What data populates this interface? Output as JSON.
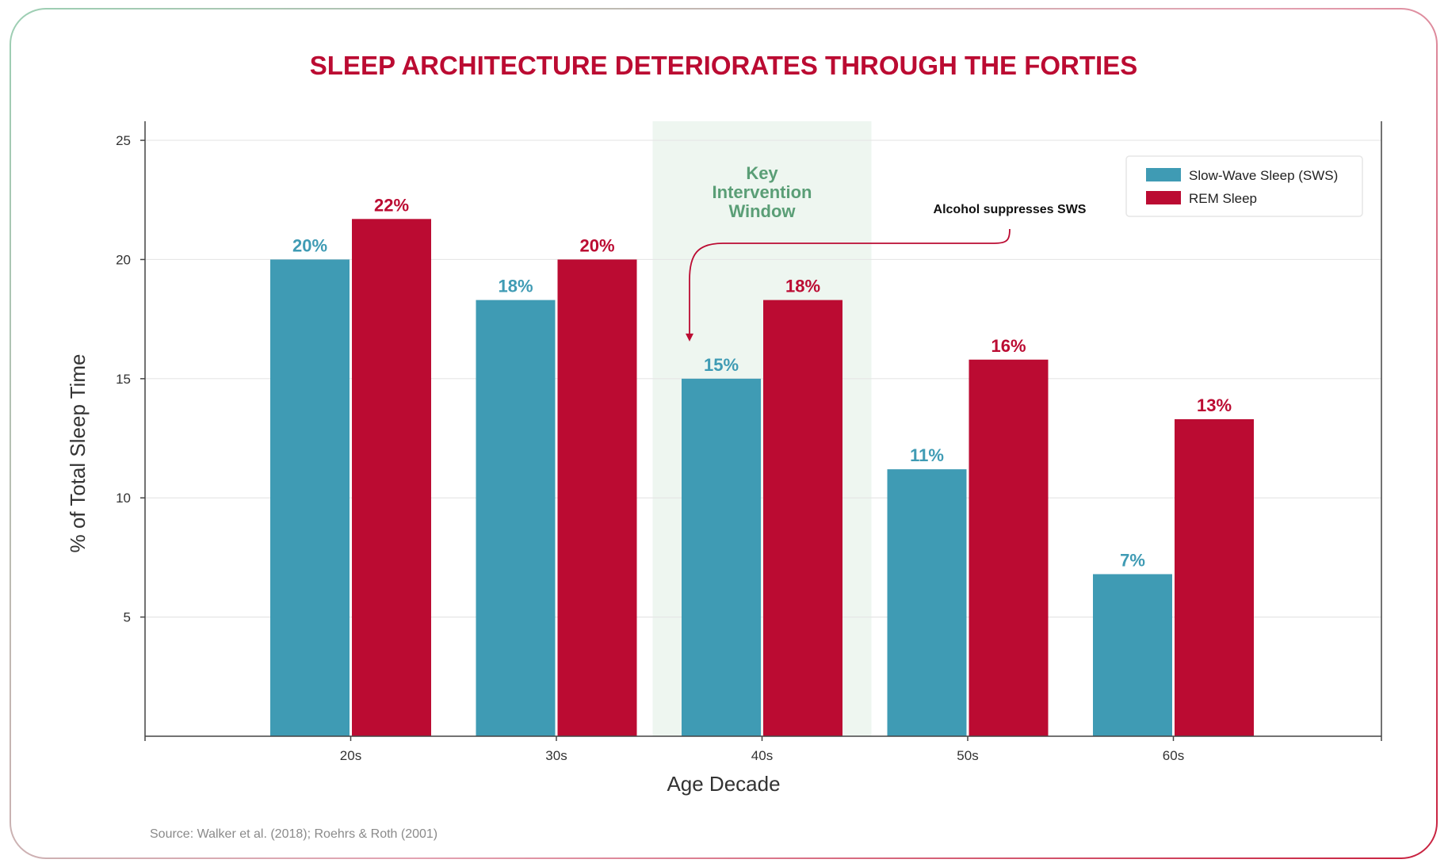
{
  "chart_data": {
    "type": "bar",
    "title": "SLEEP ARCHITECTURE DETERIORATES THROUGH THE FORTIES",
    "xlabel": "Age Decade",
    "ylabel": "% of Total Sleep Time",
    "categories": [
      "20s",
      "30s",
      "40s",
      "50s",
      "60s"
    ],
    "ylim": [
      0,
      25.8
    ],
    "yticks": [
      5,
      10,
      15,
      20,
      25
    ],
    "grid": true,
    "legend_position": "top-right",
    "series": [
      {
        "name": "Slow-Wave Sleep (SWS)",
        "color": "#3f9bb4",
        "values": [
          20,
          18.3,
          15,
          11.2,
          6.8
        ],
        "labels": [
          "20%",
          "18%",
          "15%",
          "11%",
          "7%"
        ]
      },
      {
        "name": "REM Sleep",
        "color": "#bb0b32",
        "values": [
          21.7,
          20,
          18.3,
          15.8,
          13.3
        ],
        "labels": [
          "22%",
          "20%",
          "18%",
          "16%",
          "13%"
        ]
      }
    ],
    "highlight": {
      "category": "40s",
      "label_lines": [
        "Key",
        "Intervention",
        "Window"
      ],
      "color": "#eef6f0"
    },
    "annotation": {
      "text": "Alcohol suppresses SWS",
      "target_category": "40s",
      "target_series": "Slow-Wave Sleep (SWS)",
      "color": "#bb0b32"
    },
    "source": "Source: Walker et al. (2018); Roehrs & Roth (2001)"
  }
}
